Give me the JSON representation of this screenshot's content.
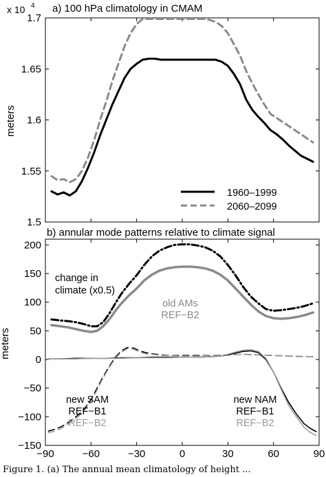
{
  "caption_visible": "Figure 1. (a) The annual mean climatology of height ...",
  "chart_data": [
    {
      "type": "line",
      "title": "a) 100 hPa climatology in CMAM",
      "ylabel": "meters",
      "y_exponent_label": "x 10",
      "y_exponent_power": "4",
      "xlim": [
        -90,
        90
      ],
      "ylim": [
        1.5,
        1.7
      ],
      "yticks": [
        "1.5",
        "1.55",
        "1.6",
        "1.65",
        "1.7"
      ],
      "ytick_values": [
        1.5,
        1.55,
        1.6,
        1.65,
        1.7
      ],
      "xticks_shown": false,
      "grid": false,
      "legend_placement": "bottom-right",
      "series": [
        {
          "name": "1960–1999",
          "color": "#000000",
          "style": "solid",
          "x": [
            -86,
            -82,
            -78,
            -74,
            -70,
            -66,
            -62,
            -58,
            -54,
            -50,
            -46,
            -42,
            -38,
            -34,
            -30,
            -26,
            -22,
            -18,
            -14,
            -10,
            -6,
            -2,
            2,
            6,
            10,
            14,
            18,
            22,
            26,
            30,
            34,
            38,
            42,
            46,
            50,
            54,
            58,
            62,
            66,
            70,
            74,
            78,
            82,
            86
          ],
          "y": [
            1.53,
            1.527,
            1.529,
            1.526,
            1.53,
            1.54,
            1.553,
            1.568,
            1.585,
            1.6,
            1.615,
            1.628,
            1.641,
            1.65,
            1.655,
            1.659,
            1.66,
            1.66,
            1.659,
            1.659,
            1.659,
            1.659,
            1.659,
            1.659,
            1.659,
            1.659,
            1.659,
            1.659,
            1.657,
            1.653,
            1.645,
            1.635,
            1.62,
            1.61,
            1.603,
            1.597,
            1.59,
            1.586,
            1.581,
            1.575,
            1.57,
            1.565,
            1.562,
            1.559
          ]
        },
        {
          "name": "2060–2099",
          "color": "#8a8a8a",
          "style": "dashed",
          "x": [
            -86,
            -82,
            -78,
            -74,
            -70,
            -66,
            -62,
            -58,
            -54,
            -50,
            -46,
            -42,
            -38,
            -34,
            -30,
            -26,
            -22,
            -18,
            -14,
            -10,
            -6,
            -2,
            2,
            6,
            10,
            14,
            18,
            22,
            26,
            30,
            34,
            38,
            42,
            46,
            50,
            54,
            58,
            62,
            66,
            70,
            74,
            78,
            82,
            86
          ],
          "y": [
            1.545,
            1.541,
            1.542,
            1.539,
            1.542,
            1.55,
            1.563,
            1.58,
            1.6,
            1.618,
            1.638,
            1.655,
            1.672,
            1.685,
            1.694,
            1.699,
            1.699,
            1.699,
            1.699,
            1.699,
            1.699,
            1.699,
            1.699,
            1.699,
            1.699,
            1.699,
            1.698,
            1.696,
            1.692,
            1.685,
            1.674,
            1.663,
            1.648,
            1.636,
            1.625,
            1.615,
            1.606,
            1.602,
            1.598,
            1.594,
            1.59,
            1.586,
            1.582,
            1.578
          ]
        }
      ]
    },
    {
      "type": "line",
      "title": "b) annular mode patterns relative to climate signal",
      "ylabel": "meters",
      "xlim": [
        -90,
        90
      ],
      "ylim": [
        -150,
        210
      ],
      "xticks": [
        "−90",
        "−60",
        "−30",
        "0",
        "30",
        "60",
        "90"
      ],
      "xtick_values": [
        -90,
        -60,
        -30,
        0,
        30,
        60,
        90
      ],
      "yticks": [
        "−150",
        "−100",
        "−50",
        "0",
        "50",
        "100",
        "150",
        "200"
      ],
      "ytick_values": [
        -150,
        -100,
        -50,
        0,
        50,
        100,
        150,
        200
      ],
      "grid": false,
      "annotations": {
        "change_line1": "change in",
        "change_line2": "climate (x0.5)",
        "old_line1": "old AMs",
        "old_line2": "REF−B2",
        "sam_line1": "new SAM",
        "sam_line2": "REF−B1",
        "sam_line3": "REF−B2",
        "nam_line1": "new NAM",
        "nam_line2": "REF−B1",
        "nam_line3": "REF−B2"
      },
      "series": [
        {
          "label_ref": "change in climate (x0.5)",
          "color": "#000000",
          "style": "dashdot",
          "x": [
            -86,
            -80,
            -75,
            -70,
            -65,
            -60,
            -56,
            -52,
            -48,
            -44,
            -40,
            -35,
            -30,
            -25,
            -20,
            -15,
            -10,
            -5,
            0,
            5,
            10,
            15,
            20,
            25,
            30,
            35,
            40,
            45,
            50,
            55,
            60,
            65,
            70,
            75,
            80,
            86
          ],
          "y": [
            70,
            68,
            67,
            65,
            62,
            58,
            58,
            65,
            80,
            98,
            115,
            132,
            147,
            165,
            180,
            190,
            196,
            200,
            201,
            201,
            199,
            196,
            190,
            180,
            165,
            147,
            127,
            110,
            98,
            88,
            85,
            86,
            88,
            90,
            93,
            98
          ]
        },
        {
          "label_ref": "old AMs REF−B2",
          "color": "#8a8a8a",
          "style": "solid",
          "x": [
            -86,
            -80,
            -75,
            -70,
            -65,
            -60,
            -56,
            -52,
            -48,
            -44,
            -40,
            -35,
            -30,
            -25,
            -20,
            -15,
            -10,
            -5,
            0,
            5,
            10,
            15,
            20,
            25,
            30,
            35,
            40,
            45,
            50,
            55,
            60,
            65,
            70,
            75,
            80,
            86
          ],
          "y": [
            60,
            58,
            56,
            53,
            50,
            48,
            50,
            58,
            70,
            85,
            98,
            112,
            124,
            138,
            148,
            155,
            159,
            161,
            162,
            162,
            161,
            159,
            155,
            148,
            138,
            124,
            110,
            96,
            84,
            76,
            72,
            71,
            72,
            74,
            77,
            82
          ]
        },
        {
          "label_ref": "new SAM REF−B1",
          "color": "#000000",
          "style": "dashed",
          "x": [
            -88,
            -84,
            -80,
            -76,
            -72,
            -68,
            -64,
            -60,
            -56,
            -52,
            -48,
            -44,
            -40,
            -36,
            -32,
            -28,
            -24,
            -20,
            -14,
            -8,
            -2,
            4,
            10,
            20,
            30,
            40,
            50,
            60,
            70,
            80,
            88
          ],
          "y": [
            -125,
            -122,
            -118,
            -112,
            -104,
            -96,
            -85,
            -70,
            -50,
            -30,
            -12,
            4,
            15,
            21,
            20,
            15,
            12,
            10,
            8,
            7,
            7,
            7,
            7,
            7,
            8,
            9,
            8,
            7,
            6,
            5,
            5
          ]
        },
        {
          "label_ref": "new SAM REF−B2",
          "color": "#9a9a9a",
          "style": "dashed",
          "x": [
            -88,
            -84,
            -80,
            -76,
            -72,
            -68,
            -64,
            -60,
            -56,
            -52,
            -48,
            -44,
            -40,
            -36,
            -32,
            -28,
            -24,
            -20,
            -14,
            -8,
            -2,
            4,
            10,
            20,
            30,
            40,
            50,
            60,
            70,
            80,
            88
          ],
          "y": [
            -128,
            -125,
            -121,
            -115,
            -107,
            -99,
            -88,
            -73,
            -53,
            -32,
            -14,
            2,
            13,
            19,
            18,
            13,
            10,
            9,
            7,
            7,
            6,
            6,
            6,
            7,
            8,
            9,
            8,
            7,
            6,
            5,
            5
          ]
        },
        {
          "label_ref": "new NAM REF−B1",
          "color": "#000000",
          "style": "solid",
          "x": [
            -88,
            -80,
            -70,
            -60,
            -50,
            -40,
            -30,
            -20,
            -10,
            0,
            10,
            20,
            25,
            30,
            35,
            40,
            45,
            50,
            55,
            60,
            65,
            70,
            75,
            80,
            84,
            88
          ],
          "y": [
            1,
            1,
            2,
            2,
            2,
            3,
            3,
            4,
            4,
            4,
            4,
            5,
            6,
            8,
            11,
            14,
            15,
            12,
            0,
            -22,
            -50,
            -75,
            -95,
            -112,
            -120,
            -126
          ]
        },
        {
          "label_ref": "new NAM REF−B2",
          "color": "#9a9a9a",
          "style": "solid",
          "x": [
            -88,
            -80,
            -70,
            -60,
            -50,
            -40,
            -30,
            -20,
            -10,
            0,
            10,
            20,
            25,
            30,
            35,
            40,
            45,
            50,
            55,
            60,
            65,
            70,
            75,
            80,
            84,
            88
          ],
          "y": [
            1,
            1,
            1,
            2,
            2,
            2,
            3,
            3,
            3,
            4,
            4,
            5,
            6,
            9,
            13,
            16,
            17,
            14,
            2,
            -22,
            -52,
            -80,
            -100,
            -118,
            -127,
            -133
          ]
        }
      ]
    }
  ]
}
